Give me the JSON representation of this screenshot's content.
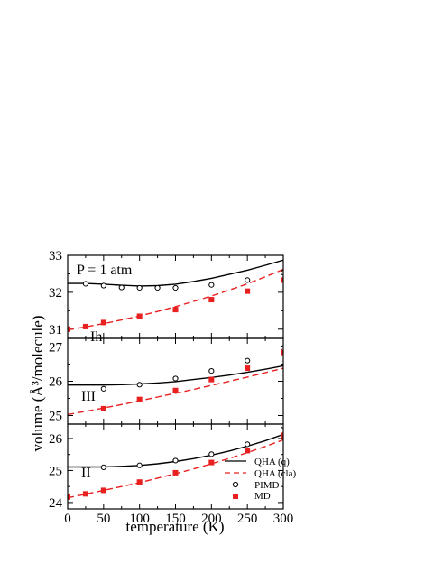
{
  "chart_data": {
    "type": "line",
    "xlabel": "temperature (K)",
    "ylabel": "volume (Å³/molecule)",
    "xlim": [
      0,
      300
    ],
    "xticks": [
      0,
      50,
      100,
      150,
      200,
      250,
      300
    ],
    "legend": {
      "placement": "bottom-right",
      "entries": [
        "QHA (q)",
        "QHA (cla)",
        "PIMD",
        "MD"
      ]
    },
    "panels": [
      {
        "label": "Ih",
        "annotation": "P = 1 atm",
        "ylim": [
          30.75,
          33
        ],
        "yticks": [
          31,
          32,
          33
        ],
        "series": [
          {
            "name": "QHA (q)",
            "style": "solid",
            "color": "#000000",
            "x": [
              0,
              25,
              50,
              75,
              100,
              125,
              150,
              175,
              200,
              225,
              250,
              275,
              300
            ],
            "y": [
              32.24,
              32.24,
              32.22,
              32.19,
              32.17,
              32.18,
              32.22,
              32.29,
              32.38,
              32.49,
              32.6,
              32.73,
              32.87
            ]
          },
          {
            "name": "QHA (cla)",
            "style": "dashed",
            "color": "#e8201f",
            "x": [
              0,
              25,
              50,
              75,
              100,
              125,
              150,
              175,
              200,
              225,
              250,
              275,
              300
            ],
            "y": [
              30.98,
              31.06,
              31.15,
              31.25,
              31.36,
              31.48,
              31.61,
              31.75,
              31.9,
              32.06,
              32.23,
              32.42,
              32.62
            ]
          },
          {
            "name": "PIMD",
            "marker": "circle",
            "color": "#000000",
            "x": [
              25,
              50,
              75,
              100,
              125,
              150,
              200,
              250,
              300
            ],
            "y": [
              32.23,
              32.18,
              32.13,
              32.12,
              32.12,
              32.12,
              32.2,
              32.33,
              32.53
            ]
          },
          {
            "name": "MD",
            "marker": "square",
            "color": "#e8201f",
            "x": [
              0,
              25,
              50,
              100,
              150,
              200,
              250,
              300
            ],
            "y": [
              31.0,
              31.07,
              31.18,
              31.35,
              31.53,
              31.8,
              32.03,
              32.33
            ]
          }
        ]
      },
      {
        "label": "III",
        "ylim": [
          24.75,
          27.25
        ],
        "yticks": [
          25,
          26,
          27
        ],
        "series": [
          {
            "name": "QHA (q)",
            "style": "solid",
            "color": "#000000",
            "x": [
              0,
              25,
              50,
              75,
              100,
              125,
              150,
              175,
              200,
              225,
              250,
              275,
              300
            ],
            "y": [
              25.89,
              25.89,
              25.89,
              25.9,
              25.92,
              25.95,
              25.99,
              26.05,
              26.11,
              26.18,
              26.26,
              26.35,
              26.45
            ]
          },
          {
            "name": "QHA (cla)",
            "style": "dashed",
            "color": "#e8201f",
            "x": [
              0,
              25,
              50,
              75,
              100,
              125,
              150,
              175,
              200,
              225,
              250,
              275,
              300
            ],
            "y": [
              25.03,
              25.12,
              25.22,
              25.32,
              25.43,
              25.54,
              25.65,
              25.76,
              25.88,
              26.0,
              26.12,
              26.25,
              26.38
            ]
          },
          {
            "name": "PIMD",
            "marker": "circle",
            "color": "#000000",
            "x": [
              50,
              100,
              150,
              200,
              250,
              300
            ],
            "y": [
              25.78,
              25.9,
              26.08,
              26.3,
              26.6,
              26.97
            ]
          },
          {
            "name": "MD",
            "marker": "square",
            "color": "#e8201f",
            "x": [
              50,
              100,
              150,
              200,
              250,
              300
            ],
            "y": [
              25.2,
              25.47,
              25.73,
              26.05,
              26.38,
              26.84
            ]
          }
        ]
      },
      {
        "label": "II",
        "ylim": [
          23.8,
          26.45
        ],
        "yticks": [
          24,
          25,
          26
        ],
        "series": [
          {
            "name": "QHA (q)",
            "style": "solid",
            "color": "#000000",
            "x": [
              0,
              25,
              50,
              75,
              100,
              125,
              150,
              175,
              200,
              225,
              250,
              275,
              300
            ],
            "y": [
              25.11,
              25.11,
              25.11,
              25.13,
              25.16,
              25.21,
              25.28,
              25.37,
              25.48,
              25.61,
              25.76,
              25.93,
              26.13
            ]
          },
          {
            "name": "QHA (cla)",
            "style": "dashed",
            "color": "#e8201f",
            "x": [
              0,
              25,
              50,
              75,
              100,
              125,
              150,
              175,
              200,
              225,
              250,
              275,
              300
            ],
            "y": [
              24.15,
              24.26,
              24.38,
              24.5,
              24.62,
              24.76,
              24.9,
              25.05,
              25.21,
              25.38,
              25.56,
              25.75,
              25.96
            ]
          },
          {
            "name": "PIMD",
            "marker": "circle",
            "color": "#000000",
            "x": [
              50,
              100,
              150,
              200,
              250,
              300
            ],
            "y": [
              25.1,
              25.16,
              25.31,
              25.51,
              25.82,
              26.4
            ]
          },
          {
            "name": "MD",
            "marker": "square",
            "color": "#e8201f",
            "x": [
              0,
              25,
              50,
              100,
              150,
              200,
              250,
              300
            ],
            "y": [
              24.17,
              24.27,
              24.38,
              24.64,
              24.93,
              25.25,
              25.62,
              26.1
            ]
          }
        ]
      }
    ]
  }
}
